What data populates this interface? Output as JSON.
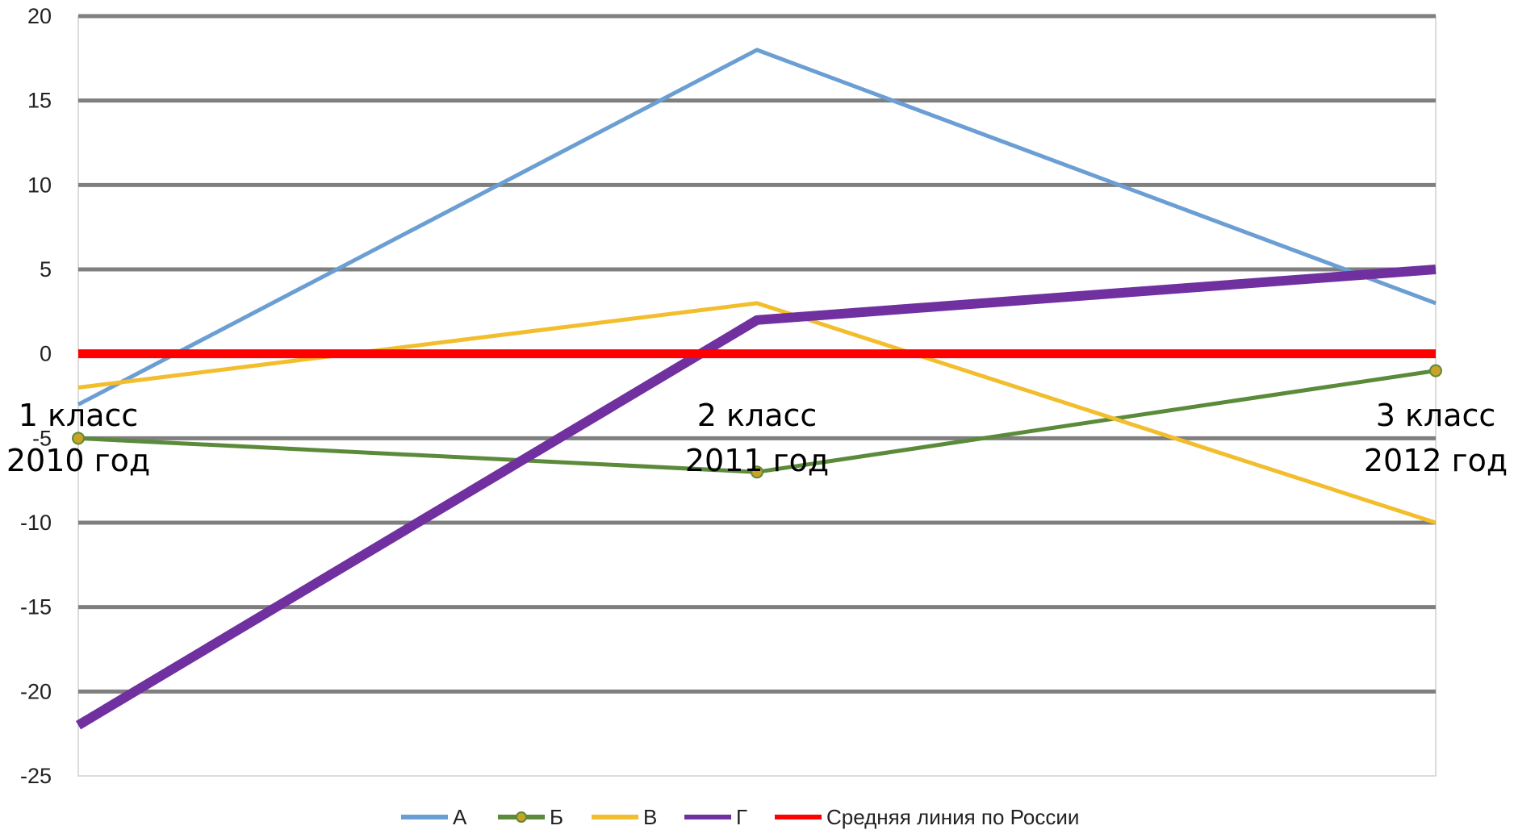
{
  "chart_data": {
    "type": "line",
    "title": "",
    "xlabel": "",
    "ylabel": "",
    "ylim": [
      -25,
      20
    ],
    "yticks": [
      -25,
      -20,
      -15,
      -10,
      -5,
      0,
      5,
      10,
      15,
      20
    ],
    "categories": [
      {
        "line1": "1 класс",
        "line2": "2010 год"
      },
      {
        "line1": "2 класс",
        "line2": "2011 год"
      },
      {
        "line1": "3 класс",
        "line2": "2012 год"
      }
    ],
    "grid": true,
    "legend_position": "bottom",
    "series": [
      {
        "name": "А",
        "values": [
          -3,
          18,
          3
        ],
        "color": "#6B9ED2",
        "markers": false
      },
      {
        "name": "Б",
        "values": [
          -5,
          -7,
          -1
        ],
        "color": "#5B8A3A",
        "markers": true,
        "marker_fill": "#C9A227"
      },
      {
        "name": "В",
        "values": [
          -2,
          3,
          -10
        ],
        "color": "#F2BE2E",
        "markers": false
      },
      {
        "name": "Г",
        "values": [
          -22,
          2,
          5
        ],
        "color": "#7030A0",
        "markers": false
      },
      {
        "name": "Средняя линия по России",
        "values": [
          0,
          0,
          0
        ],
        "color": "#FF0000",
        "markers": false
      }
    ]
  }
}
